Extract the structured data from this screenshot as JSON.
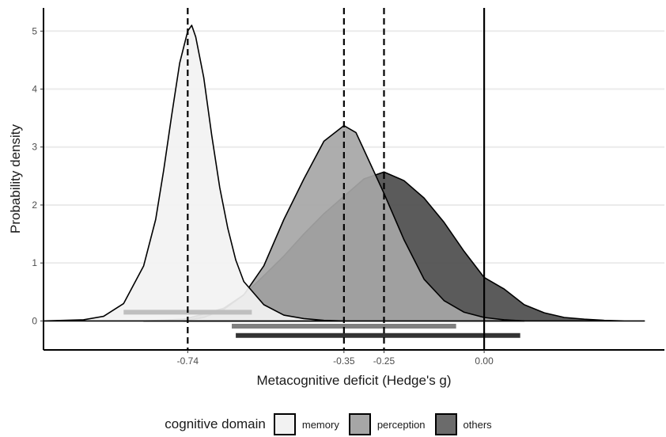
{
  "chart_data": {
    "type": "area",
    "xlabel": "Metacognitive deficit (Hedge's g)",
    "ylabel": "Probability density",
    "xlim": [
      -1.1,
      0.45
    ],
    "ylim": [
      -0.5,
      5.4
    ],
    "x_ticks": [
      {
        "value": -0.74,
        "label": "-0.74"
      },
      {
        "value": -0.35,
        "label": "-0.35"
      },
      {
        "value": -0.25,
        "label": "-0.25"
      },
      {
        "value": 0.0,
        "label": "0.00"
      }
    ],
    "y_ticks": [
      {
        "value": 0,
        "label": "0"
      },
      {
        "value": 1,
        "label": "1"
      },
      {
        "value": 2,
        "label": "2"
      },
      {
        "value": 3,
        "label": "3"
      },
      {
        "value": 4,
        "label": "4"
      },
      {
        "value": 5,
        "label": "5"
      }
    ],
    "grid": "horizontal",
    "legend_position": "bottom",
    "reference_lines": [
      {
        "x": -0.74,
        "style": "dashed"
      },
      {
        "x": -0.35,
        "style": "dashed"
      },
      {
        "x": -0.25,
        "style": "dashed"
      },
      {
        "x": 0.0,
        "style": "solid"
      }
    ],
    "series": [
      {
        "name": "others",
        "color": "#4d4d4d",
        "x": [
          -0.85,
          -0.75,
          -0.7,
          -0.65,
          -0.6,
          -0.55,
          -0.5,
          -0.45,
          -0.4,
          -0.35,
          -0.3,
          -0.25,
          -0.2,
          -0.15,
          -0.1,
          -0.05,
          0.0,
          0.05,
          0.1,
          0.15,
          0.2,
          0.25,
          0.3,
          0.35,
          0.4
        ],
        "y": [
          0.0,
          0.03,
          0.12,
          0.22,
          0.45,
          0.78,
          1.12,
          1.5,
          1.85,
          2.15,
          2.45,
          2.57,
          2.42,
          2.12,
          1.7,
          1.2,
          0.75,
          0.55,
          0.28,
          0.14,
          0.06,
          0.03,
          0.01,
          0.0,
          0.0
        ]
      },
      {
        "name": "perception",
        "color": "#a6a6a6",
        "x": [
          -0.75,
          -0.7,
          -0.65,
          -0.6,
          -0.55,
          -0.5,
          -0.45,
          -0.4,
          -0.35,
          -0.32,
          -0.3,
          -0.25,
          -0.2,
          -0.15,
          -0.1,
          -0.05,
          0.0,
          0.05,
          0.1
        ],
        "y": [
          0.0,
          0.06,
          0.2,
          0.45,
          0.95,
          1.75,
          2.45,
          3.1,
          3.37,
          3.25,
          2.95,
          2.2,
          1.4,
          0.72,
          0.35,
          0.15,
          0.06,
          0.02,
          0.0
        ]
      },
      {
        "name": "memory",
        "color": "#f2f2f2",
        "x": [
          -1.1,
          -1.0,
          -0.95,
          -0.9,
          -0.85,
          -0.82,
          -0.8,
          -0.78,
          -0.76,
          -0.74,
          -0.73,
          -0.72,
          -0.7,
          -0.68,
          -0.66,
          -0.64,
          -0.62,
          -0.6,
          -0.55,
          -0.5,
          -0.45,
          -0.4,
          -0.35
        ],
        "y": [
          0.0,
          0.02,
          0.08,
          0.3,
          0.95,
          1.75,
          2.6,
          3.55,
          4.45,
          5.0,
          5.1,
          4.9,
          4.2,
          3.2,
          2.3,
          1.6,
          1.05,
          0.68,
          0.28,
          0.1,
          0.04,
          0.01,
          0.0
        ]
      }
    ],
    "interval_bars": [
      {
        "name": "memory",
        "color": "#bfbfbf",
        "x_start": -0.9,
        "x_end": -0.58,
        "y": 0.15
      },
      {
        "name": "perception",
        "color": "#808080",
        "x_start": -0.63,
        "x_end": -0.07,
        "y": -0.09
      },
      {
        "name": "others",
        "color": "#333333",
        "x_start": -0.62,
        "x_end": 0.09,
        "y": -0.25
      }
    ]
  },
  "legend": {
    "title": "cognitive domain",
    "items": [
      {
        "label": "memory",
        "color": "#f2f2f2"
      },
      {
        "label": "perception",
        "color": "#a6a6a6"
      },
      {
        "label": "others",
        "color": "#6b6b6b"
      }
    ]
  }
}
